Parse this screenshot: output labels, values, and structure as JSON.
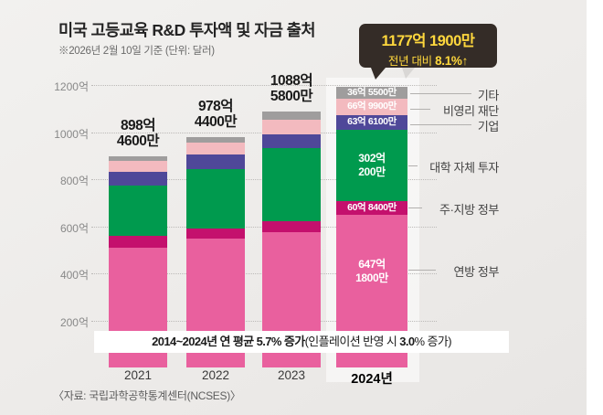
{
  "title": "미국 고등교육 R&D 투자액 및 자금 출처",
  "subtitle": "※2026년 2월 10일 기준  (단위: 달러)",
  "callout": {
    "line1": "1177억 1900만",
    "line2_prefix": "전년 대비 ",
    "line2_bold": "8.1%↑"
  },
  "annotation": {
    "bold": "2014~2024년 연 평균 5.7% 증가",
    "normal_open": "(인플레이션 반영 시 ",
    "bold2": "3.0",
    "normal_close": "% 증가)"
  },
  "source": "〈자료: 국립과학공학통계센터(NCSES)〉",
  "colors": {
    "background": "#edebe9",
    "callout_bg": "#342c27",
    "callout_text": "#ffd83d",
    "federal": "#e9609e",
    "state_local": "#c4106d",
    "university": "#009a4e",
    "corporate": "#4f4899",
    "nonprofit": "#f3babf",
    "other": "#9f9d9d"
  },
  "chart_data": {
    "type": "bar",
    "stacked": true,
    "value_unit": "억 달러",
    "categories": [
      "2021",
      "2022",
      "2023",
      "2024년"
    ],
    "totals": [
      898.46,
      978.44,
      1088.58,
      1177.19
    ],
    "total_labels": [
      [
        "898억",
        "4600만"
      ],
      [
        "978억",
        "4400만"
      ],
      [
        "1088억",
        "5800만"
      ],
      [
        "1177억",
        "1900만"
      ]
    ],
    "series": [
      {
        "name": "연방 정부",
        "color": "#e9609e",
        "values": [
          510,
          546,
          573,
          647.18
        ],
        "label_2024": [
          "647억",
          "1800만"
        ]
      },
      {
        "name": "주·지방 정부",
        "color": "#c4106d",
        "values": [
          50,
          46,
          50,
          60.84
        ],
        "label_2024": [
          "60억 8400만"
        ]
      },
      {
        "name": "대학 자체 투자",
        "color": "#009a4e",
        "values": [
          212,
          250,
          308,
          302.02
        ],
        "label_2024": [
          "302억",
          "200만"
        ]
      },
      {
        "name": "기업",
        "color": "#4f4899",
        "values": [
          58,
          62,
          58,
          63.61
        ],
        "label_2024": [
          "63억 6100만"
        ]
      },
      {
        "name": "비영리 재단",
        "color": "#f3babf",
        "values": [
          46,
          50,
          65,
          66.99
        ],
        "label_2024": [
          "66억 9900만"
        ]
      },
      {
        "name": "기타",
        "color": "#9f9d9d",
        "values": [
          22.46,
          24.44,
          34.58,
          36.55
        ],
        "label_2024": [
          "36억 5500만"
        ]
      }
    ],
    "legend": [
      "기타",
      "비영리 재단",
      "기업",
      "대학 자체 투자",
      "주·지방 정부",
      "연방 정부"
    ],
    "y_axis": {
      "ticks": [
        {
          "value": 1200,
          "label": "1200억"
        },
        {
          "value": 1000,
          "label": "1000억"
        },
        {
          "value": 800,
          "label": "800억"
        },
        {
          "value": 600,
          "label": "600억"
        },
        {
          "value": 400,
          "label": "400억"
        },
        {
          "value": 200,
          "label": "200억"
        }
      ],
      "max": 1200
    },
    "grid": "dotted-horizontal",
    "legend_position": "right"
  }
}
